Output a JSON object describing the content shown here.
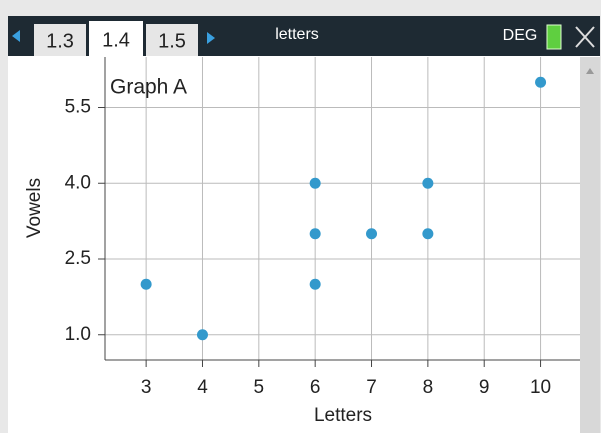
{
  "toolbar": {
    "tabs": [
      "1.3",
      "1.4",
      "1.5"
    ],
    "document": "letters",
    "mode": "DEG"
  },
  "chart_data": {
    "type": "scatter",
    "annotation": "Graph A",
    "x_label": "Letters",
    "y_label": "Vowels",
    "series": [
      {
        "color": "#3399cc",
        "x": [
          3,
          4,
          6,
          6,
          6,
          7,
          8,
          8,
          10
        ],
        "values": [
          2,
          1,
          2,
          3,
          4,
          3,
          3,
          4,
          6
        ]
      }
    ],
    "xlim": [
      2.27,
      10.7
    ],
    "ylim": [
      0.5,
      6.5
    ],
    "xticks": [
      3,
      4,
      5,
      6,
      7,
      8,
      9,
      10
    ],
    "yticks": [
      {
        "value": 1,
        "label": "1.0"
      },
      {
        "value": 2.5,
        "label": "2.5"
      },
      {
        "value": 4,
        "label": "4.0"
      },
      {
        "value": 5.5,
        "label": "5.5"
      }
    ],
    "grid": true
  }
}
